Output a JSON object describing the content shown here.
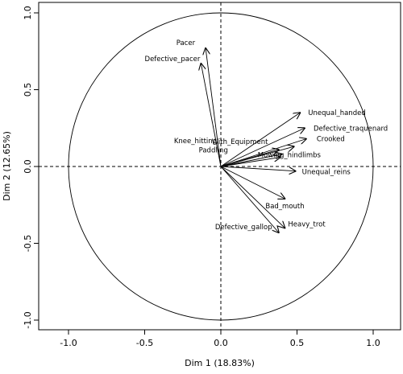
{
  "chart_data": {
    "type": "scatter",
    "subtype": "pca-variable-correlation-circle",
    "xlabel": "Dim 1 (18.83%)",
    "ylabel": "Dim 2 (12.65%)",
    "xlim": [
      -1.0,
      1.0
    ],
    "ylim": [
      -1.0,
      1.0
    ],
    "xticks": [
      "-1.0",
      "-0.5",
      "0.0",
      "0.5",
      "1.0"
    ],
    "yticks": [
      "-1.0",
      "-0.5",
      "0.0",
      "0.5",
      "1.0"
    ],
    "unit_circle": true,
    "reference_lines": "dashed at x=0 and y=0",
    "vectors": [
      {
        "name": "Pacer",
        "x": -0.1,
        "y": 0.77
      },
      {
        "name": "Defective_pacer",
        "x": -0.13,
        "y": 0.67
      },
      {
        "name": "Unequal_handed",
        "x": 0.52,
        "y": 0.35
      },
      {
        "name": "Defective_traquenard",
        "x": 0.55,
        "y": 0.25
      },
      {
        "name": "Crooked",
        "x": 0.56,
        "y": 0.18
      },
      {
        "name": "With_Equipment",
        "x": 0.48,
        "y": 0.13
      },
      {
        "name": "Knee_hitting",
        "x": 0.38,
        "y": 0.11
      },
      {
        "name": "Paddling",
        "x": 0.4,
        "y": 0.08
      },
      {
        "name": "Mowing_hindlimbs",
        "x": 0.39,
        "y": 0.06
      },
      {
        "name": "Unequal_reins",
        "x": 0.49,
        "y": -0.03
      },
      {
        "name": "Bad_mouth",
        "x": 0.42,
        "y": -0.21
      },
      {
        "name": "Heavy_trot",
        "x": 0.42,
        "y": -0.4
      },
      {
        "name": "Defective_gallop",
        "x": 0.38,
        "y": -0.43
      }
    ]
  }
}
